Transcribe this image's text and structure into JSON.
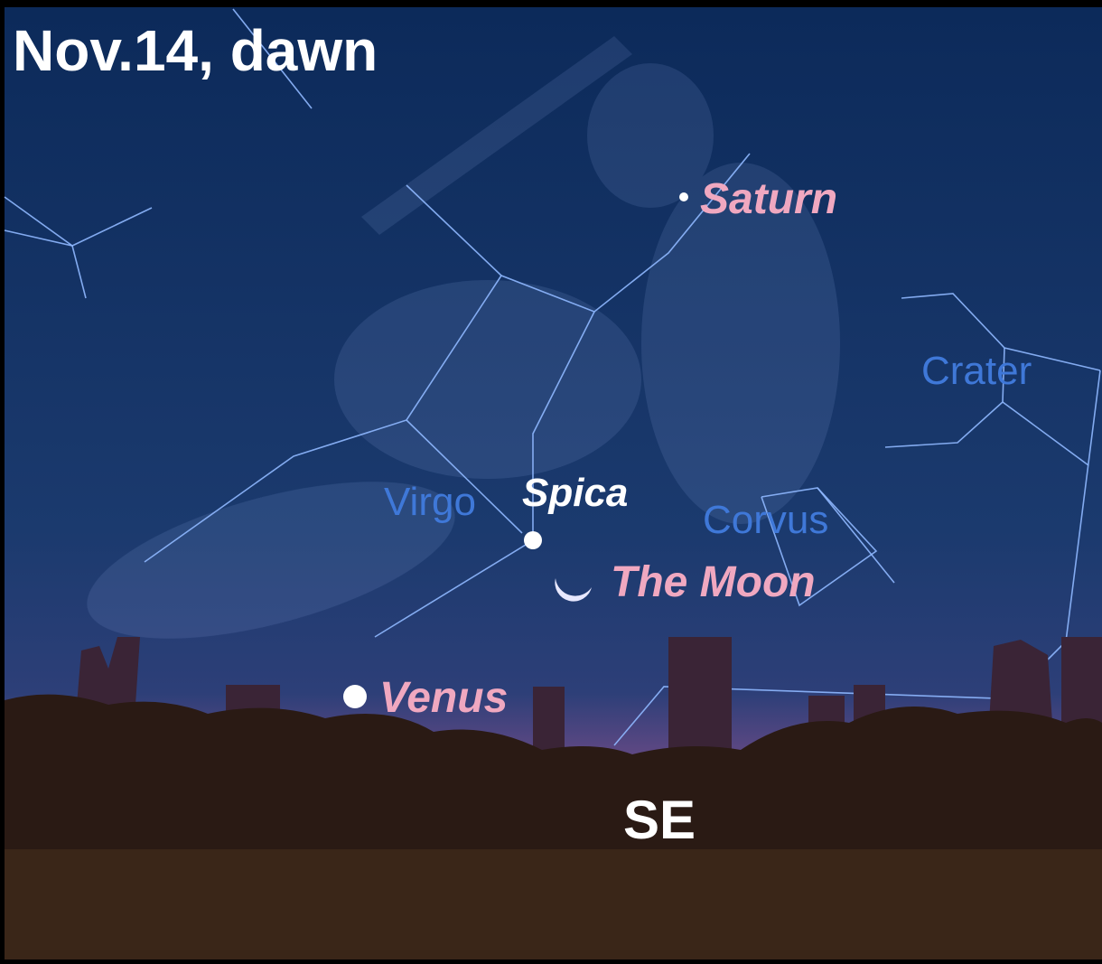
{
  "title": "Nov.14, dawn",
  "objects": [
    {
      "label": "Saturn"
    },
    {
      "label": "Spica"
    },
    {
      "label": "The Moon"
    },
    {
      "label": "Venus"
    }
  ],
  "constellations": [
    {
      "label": "Virgo"
    },
    {
      "label": "Corvus"
    },
    {
      "label": "Crater"
    }
  ],
  "direction": "SE"
}
